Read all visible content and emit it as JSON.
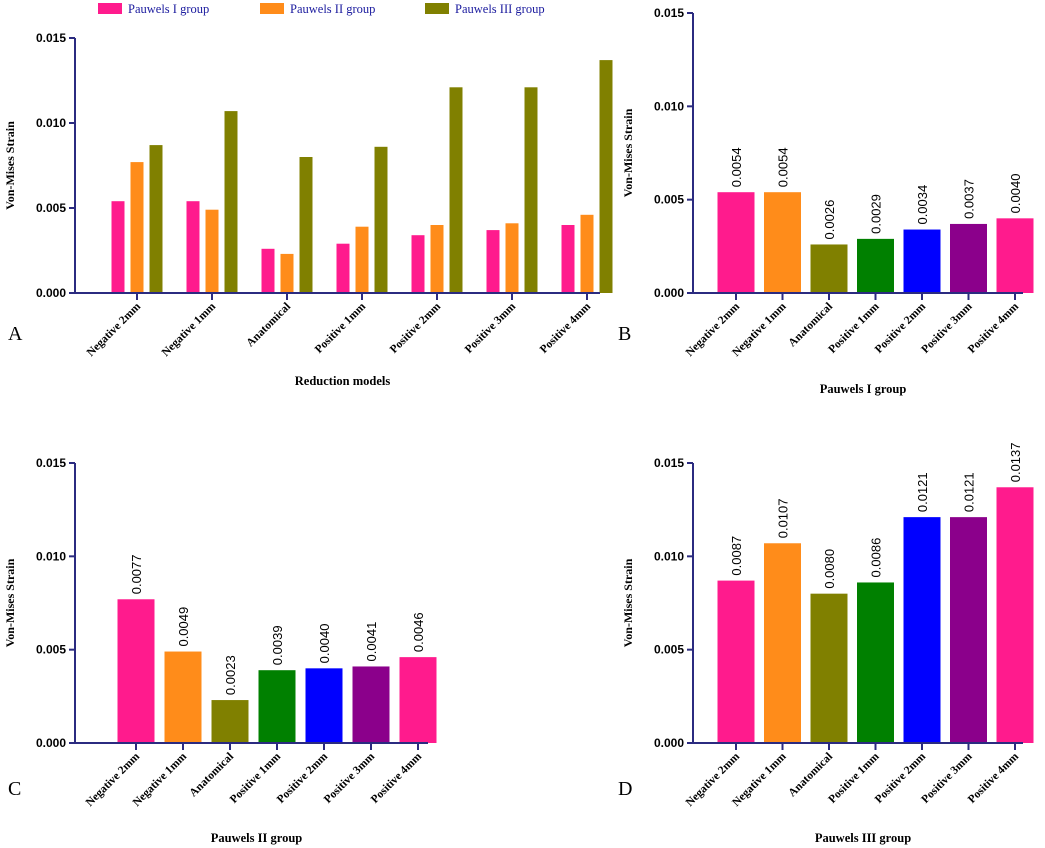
{
  "chart_data": [
    {
      "panel": "A",
      "type": "bar",
      "ylabel": "Von-Mises Strain",
      "xlabel": "Reduction models",
      "ylim": [
        0,
        0.015
      ],
      "yticks": [
        "0.000",
        "0.005",
        "0.010",
        "0.015"
      ],
      "categories": [
        "Negative 2mm",
        "Negative 1mm",
        "Anatomical",
        "Positive 1mm",
        "Positive 2mm",
        "Positive 3mm",
        "Positive 4mm"
      ],
      "series": [
        {
          "name": "Pauwels I group",
          "color": "#FF1B8D",
          "values": [
            0.0054,
            0.0054,
            0.0026,
            0.0029,
            0.0034,
            0.0037,
            0.004
          ]
        },
        {
          "name": "Pauwels II group",
          "color": "#FF8C1A",
          "values": [
            0.0077,
            0.0049,
            0.0023,
            0.0039,
            0.004,
            0.0041,
            0.0046
          ]
        },
        {
          "name": "Pauwels III group",
          "color": "#808000",
          "values": [
            0.0087,
            0.0107,
            0.008,
            0.0086,
            0.0121,
            0.0121,
            0.0137
          ]
        }
      ],
      "legend": "top"
    },
    {
      "panel": "B",
      "type": "bar",
      "ylabel": "Von-Mises Strain",
      "xlabel": "Pauwels I group",
      "ylim": [
        0,
        0.015
      ],
      "yticks": [
        "0.000",
        "0.005",
        "0.010",
        "0.015"
      ],
      "categories": [
        "Negative 2mm",
        "Negative 1mm",
        "Anatomical",
        "Positive 1mm",
        "Positive 2mm",
        "Positive 3mm",
        "Positive 4mm"
      ],
      "colors": [
        "#FF1B8D",
        "#FF8C1A",
        "#808000",
        "#008000",
        "#0000FF",
        "#8B008B",
        "#FF1B8D"
      ],
      "values": [
        0.0054,
        0.0054,
        0.0026,
        0.0029,
        0.0034,
        0.0037,
        0.004
      ],
      "value_labels": [
        "0.0054",
        "0.0054",
        "0.0026",
        "0.0029",
        "0.0034",
        "0.0037",
        "0.0040"
      ]
    },
    {
      "panel": "C",
      "type": "bar",
      "ylabel": "Von-Mises Strain",
      "xlabel": "Pauwels II group",
      "ylim": [
        0,
        0.015
      ],
      "yticks": [
        "0.000",
        "0.005",
        "0.010",
        "0.015"
      ],
      "categories": [
        "Negative 2mm",
        "Negative 1mm",
        "Anatomical",
        "Positive 1mm",
        "Positive 2mm",
        "Positive 3mm",
        "Positive 4mm"
      ],
      "colors": [
        "#FF1B8D",
        "#FF8C1A",
        "#808000",
        "#008000",
        "#0000FF",
        "#8B008B",
        "#FF1B8D"
      ],
      "values": [
        0.0077,
        0.0049,
        0.0023,
        0.0039,
        0.004,
        0.0041,
        0.0046
      ],
      "value_labels": [
        "0.0077",
        "0.0049",
        "0.0023",
        "0.0039",
        "0.0040",
        "0.0041",
        "0.0046"
      ]
    },
    {
      "panel": "D",
      "type": "bar",
      "ylabel": "Von-Mises Strain",
      "xlabel": "Pauwels III group",
      "ylim": [
        0,
        0.015
      ],
      "yticks": [
        "0.000",
        "0.005",
        "0.010",
        "0.015"
      ],
      "categories": [
        "Negative 2mm",
        "Negative 1mm",
        "Anatomical",
        "Positive 1mm",
        "Positive 2mm",
        "Positive 3mm",
        "Positive 4mm"
      ],
      "colors": [
        "#FF1B8D",
        "#FF8C1A",
        "#808000",
        "#008000",
        "#0000FF",
        "#8B008B",
        "#FF1B8D"
      ],
      "values": [
        0.0087,
        0.0107,
        0.008,
        0.0086,
        0.0121,
        0.0121,
        0.0137
      ],
      "value_labels": [
        "0.0087",
        "0.0107",
        "0.0080",
        "0.0086",
        "0.0121",
        "0.0121",
        "0.0137"
      ]
    }
  ]
}
